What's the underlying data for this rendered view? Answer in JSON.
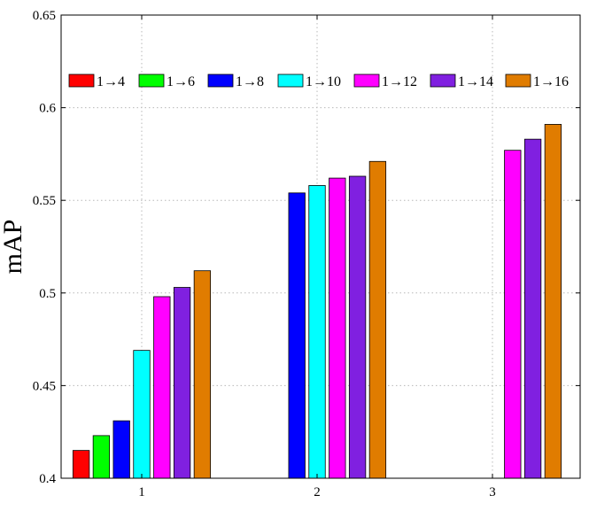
{
  "chart_data": {
    "type": "bar",
    "title": "",
    "xlabel": "",
    "ylabel": "mAP",
    "ylim": [
      0.4,
      0.65
    ],
    "yticks": [
      "0.4",
      "0.45",
      "0.5",
      "0.55",
      "0.6",
      "0.65"
    ],
    "categories": [
      "1",
      "2",
      "3"
    ],
    "grid": true,
    "legend_position": "top",
    "series": [
      {
        "name": "1→4",
        "color": "#ff0000",
        "values": [
          0.415,
          null,
          null
        ]
      },
      {
        "name": "1→6",
        "color": "#00ff00",
        "values": [
          0.423,
          null,
          null
        ]
      },
      {
        "name": "1→8",
        "color": "#0000ff",
        "values": [
          0.431,
          0.554,
          null
        ]
      },
      {
        "name": "1→10",
        "color": "#00ffff",
        "values": [
          0.469,
          0.558,
          null
        ]
      },
      {
        "name": "1→12",
        "color": "#ff00ff",
        "values": [
          0.498,
          0.562,
          0.577
        ]
      },
      {
        "name": "1→14",
        "color": "#8020e0",
        "values": [
          0.503,
          0.563,
          0.583
        ]
      },
      {
        "name": "1→16",
        "color": "#e07c00",
        "values": [
          0.512,
          0.571,
          0.591
        ]
      }
    ]
  }
}
